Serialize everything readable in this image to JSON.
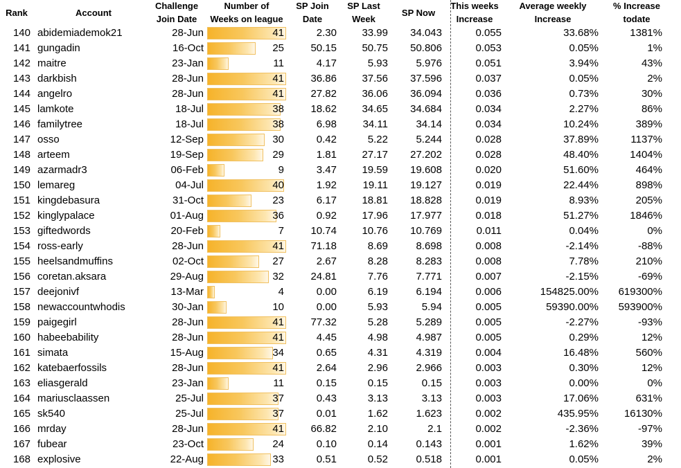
{
  "headers": {
    "rank": "Rank",
    "account": "Account",
    "join_date": "Challenge\nJoin Date",
    "weeks": "Number of\nWeeks on league",
    "sp_join": "SP Join\nDate",
    "sp_last": "SP Last\nWeek",
    "sp_now": "SP Now",
    "this_week": "This weeks\nIncrease",
    "avg_weekly": "Average weekly\nIncrease",
    "pct_todate": "% Increase\ntodate"
  },
  "max_weeks": 41,
  "rows": [
    {
      "rank": "140",
      "account": "abidemiademok21",
      "join": "28-Jun",
      "weeks": 41,
      "sp_join": "2.30",
      "sp_last": "33.99",
      "sp_now": "34.043",
      "this_week": "0.055",
      "avg": "33.68%",
      "pct": "1381%"
    },
    {
      "rank": "141",
      "account": "gungadin",
      "join": "16-Oct",
      "weeks": 25,
      "sp_join": "50.15",
      "sp_last": "50.75",
      "sp_now": "50.806",
      "this_week": "0.053",
      "avg": "0.05%",
      "pct": "1%"
    },
    {
      "rank": "142",
      "account": "maitre",
      "join": "23-Jan",
      "weeks": 11,
      "sp_join": "4.17",
      "sp_last": "5.93",
      "sp_now": "5.976",
      "this_week": "0.051",
      "avg": "3.94%",
      "pct": "43%"
    },
    {
      "rank": "143",
      "account": "darkbish",
      "join": "28-Jun",
      "weeks": 41,
      "sp_join": "36.86",
      "sp_last": "37.56",
      "sp_now": "37.596",
      "this_week": "0.037",
      "avg": "0.05%",
      "pct": "2%"
    },
    {
      "rank": "144",
      "account": "angelro",
      "join": "28-Jun",
      "weeks": 41,
      "sp_join": "27.82",
      "sp_last": "36.06",
      "sp_now": "36.094",
      "this_week": "0.036",
      "avg": "0.73%",
      "pct": "30%"
    },
    {
      "rank": "145",
      "account": "lamkote",
      "join": "18-Jul",
      "weeks": 38,
      "sp_join": "18.62",
      "sp_last": "34.65",
      "sp_now": "34.684",
      "this_week": "0.034",
      "avg": "2.27%",
      "pct": "86%"
    },
    {
      "rank": "146",
      "account": "familytree",
      "join": "18-Jul",
      "weeks": 38,
      "sp_join": "6.98",
      "sp_last": "34.11",
      "sp_now": "34.14",
      "this_week": "0.034",
      "avg": "10.24%",
      "pct": "389%"
    },
    {
      "rank": "147",
      "account": "osso",
      "join": "12-Sep",
      "weeks": 30,
      "sp_join": "0.42",
      "sp_last": "5.22",
      "sp_now": "5.244",
      "this_week": "0.028",
      "avg": "37.89%",
      "pct": "1137%"
    },
    {
      "rank": "148",
      "account": "arteem",
      "join": "19-Sep",
      "weeks": 29,
      "sp_join": "1.81",
      "sp_last": "27.17",
      "sp_now": "27.202",
      "this_week": "0.028",
      "avg": "48.40%",
      "pct": "1404%"
    },
    {
      "rank": "149",
      "account": "azarmadr3",
      "join": "06-Feb",
      "weeks": 9,
      "sp_join": "3.47",
      "sp_last": "19.59",
      "sp_now": "19.608",
      "this_week": "0.020",
      "avg": "51.60%",
      "pct": "464%"
    },
    {
      "rank": "150",
      "account": "lemareg",
      "join": "04-Jul",
      "weeks": 40,
      "sp_join": "1.92",
      "sp_last": "19.11",
      "sp_now": "19.127",
      "this_week": "0.019",
      "avg": "22.44%",
      "pct": "898%"
    },
    {
      "rank": "151",
      "account": "kingdebasura",
      "join": "31-Oct",
      "weeks": 23,
      "sp_join": "6.17",
      "sp_last": "18.81",
      "sp_now": "18.828",
      "this_week": "0.019",
      "avg": "8.93%",
      "pct": "205%"
    },
    {
      "rank": "152",
      "account": "kinglypalace",
      "join": "01-Aug",
      "weeks": 36,
      "sp_join": "0.92",
      "sp_last": "17.96",
      "sp_now": "17.977",
      "this_week": "0.018",
      "avg": "51.27%",
      "pct": "1846%"
    },
    {
      "rank": "153",
      "account": "giftedwords",
      "join": "20-Feb",
      "weeks": 7,
      "sp_join": "10.74",
      "sp_last": "10.76",
      "sp_now": "10.769",
      "this_week": "0.011",
      "avg": "0.04%",
      "pct": "0%"
    },
    {
      "rank": "154",
      "account": "ross-early",
      "join": "28-Jun",
      "weeks": 41,
      "sp_join": "71.18",
      "sp_last": "8.69",
      "sp_now": "8.698",
      "this_week": "0.008",
      "avg": "-2.14%",
      "pct": "-88%"
    },
    {
      "rank": "155",
      "account": "heelsandmuffins",
      "join": "02-Oct",
      "weeks": 27,
      "sp_join": "2.67",
      "sp_last": "8.28",
      "sp_now": "8.283",
      "this_week": "0.008",
      "avg": "7.78%",
      "pct": "210%"
    },
    {
      "rank": "156",
      "account": "coretan.aksara",
      "join": "29-Aug",
      "weeks": 32,
      "sp_join": "24.81",
      "sp_last": "7.76",
      "sp_now": "7.771",
      "this_week": "0.007",
      "avg": "-2.15%",
      "pct": "-69%"
    },
    {
      "rank": "157",
      "account": "deejonivf",
      "join": "13-Mar",
      "weeks": 4,
      "sp_join": "0.00",
      "sp_last": "6.19",
      "sp_now": "6.194",
      "this_week": "0.006",
      "avg": "154825.00%",
      "pct": "619300%"
    },
    {
      "rank": "158",
      "account": "newaccountwhodis",
      "join": "30-Jan",
      "weeks": 10,
      "sp_join": "0.00",
      "sp_last": "5.93",
      "sp_now": "5.94",
      "this_week": "0.005",
      "avg": "59390.00%",
      "pct": "593900%"
    },
    {
      "rank": "159",
      "account": "paigegirl",
      "join": "28-Jun",
      "weeks": 41,
      "sp_join": "77.32",
      "sp_last": "5.28",
      "sp_now": "5.289",
      "this_week": "0.005",
      "avg": "-2.27%",
      "pct": "-93%"
    },
    {
      "rank": "160",
      "account": "habeebability",
      "join": "28-Jun",
      "weeks": 41,
      "sp_join": "4.45",
      "sp_last": "4.98",
      "sp_now": "4.987",
      "this_week": "0.005",
      "avg": "0.29%",
      "pct": "12%"
    },
    {
      "rank": "161",
      "account": "simata",
      "join": "15-Aug",
      "weeks": 34,
      "sp_join": "0.65",
      "sp_last": "4.31",
      "sp_now": "4.319",
      "this_week": "0.004",
      "avg": "16.48%",
      "pct": "560%"
    },
    {
      "rank": "162",
      "account": "katebaerfossils",
      "join": "28-Jun",
      "weeks": 41,
      "sp_join": "2.64",
      "sp_last": "2.96",
      "sp_now": "2.966",
      "this_week": "0.003",
      "avg": "0.30%",
      "pct": "12%"
    },
    {
      "rank": "163",
      "account": "eliasgerald",
      "join": "23-Jan",
      "weeks": 11,
      "sp_join": "0.15",
      "sp_last": "0.15",
      "sp_now": "0.15",
      "this_week": "0.003",
      "avg": "0.00%",
      "pct": "0%"
    },
    {
      "rank": "164",
      "account": "mariusclaassen",
      "join": "25-Jul",
      "weeks": 37,
      "sp_join": "0.43",
      "sp_last": "3.13",
      "sp_now": "3.13",
      "this_week": "0.003",
      "avg": "17.06%",
      "pct": "631%"
    },
    {
      "rank": "165",
      "account": "sk540",
      "join": "25-Jul",
      "weeks": 37,
      "sp_join": "0.01",
      "sp_last": "1.62",
      "sp_now": "1.623",
      "this_week": "0.002",
      "avg": "435.95%",
      "pct": "16130%"
    },
    {
      "rank": "166",
      "account": "mrday",
      "join": "28-Jun",
      "weeks": 41,
      "sp_join": "66.82",
      "sp_last": "2.10",
      "sp_now": "2.1",
      "this_week": "0.002",
      "avg": "-2.36%",
      "pct": "-97%"
    },
    {
      "rank": "167",
      "account": "fubear",
      "join": "23-Oct",
      "weeks": 24,
      "sp_join": "0.10",
      "sp_last": "0.14",
      "sp_now": "0.143",
      "this_week": "0.001",
      "avg": "1.62%",
      "pct": "39%"
    },
    {
      "rank": "168",
      "account": "explosive",
      "join": "22-Aug",
      "weeks": 33,
      "sp_join": "0.51",
      "sp_last": "0.52",
      "sp_now": "0.518",
      "this_week": "0.001",
      "avg": "0.05%",
      "pct": "2%"
    }
  ]
}
